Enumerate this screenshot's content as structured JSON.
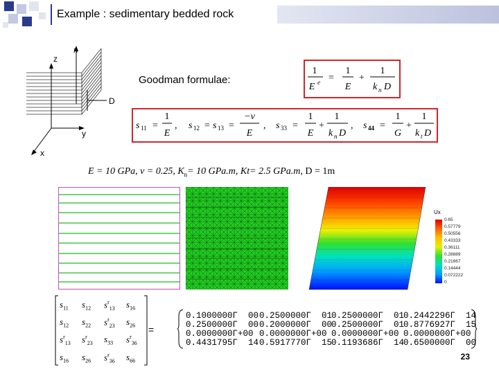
{
  "title": "Example : sedimentary bedded rock",
  "diagram": {
    "axis_n": "n",
    "axis_z": "z",
    "axis_d": "D",
    "axis_y": "y",
    "axis_x": "x"
  },
  "goodman": {
    "label": "Goodman formulae:",
    "lhs_num": "1",
    "lhs_den": "E",
    "lhs_den_sup": "e",
    "eq": "=",
    "t1_num": "1",
    "t1_den": "E",
    "plus": "+",
    "t2_num": "1",
    "t2_den_k": "k",
    "t2_den_sub": "n",
    "t2_den_d": "D"
  },
  "compliance": {
    "s11_label": "s",
    "s11_sub": "11",
    "s11_eq": "=",
    "s11_num": "1",
    "s11_den": "E",
    "comma": ",",
    "s12_label": "s",
    "s12_sub": "12",
    "s13_label": "s",
    "s13_sub": "13",
    "s12_num": "−ν",
    "s12_den": "E",
    "s33_label": "s",
    "s33_sub": "33",
    "s33_num1": "1",
    "s33_den1": "E",
    "s33_num2": "1",
    "s33_k": "k",
    "s33_ksub": "n",
    "s33_d": "D",
    "s44_label": "s",
    "s44_sub": "44",
    "s44_num1": "1",
    "s44_den1": "G",
    "s44_num2": "1",
    "s44_k": "k",
    "s44_ksub": "t",
    "s44_d": "D"
  },
  "params": {
    "text1": "E = 10 GPa, ν = 0.25,  K",
    "kn_sub": "n",
    "text2": "= 10 GPa.m, Kt= 2.5 GPa.m,  ",
    "d_text": "D = 1m"
  },
  "legend": {
    "title": "Ux",
    "values": [
      "0.65",
      "0.57779",
      "0.50556",
      "0.43333",
      "0.36111",
      "0.28889",
      "0.21667",
      "0.14444",
      "0.072222",
      "0"
    ]
  },
  "symbolic_matrix": {
    "equals": "=",
    "rows": [
      [
        [
          "s",
          "11",
          ""
        ],
        [
          "s",
          "12",
          ""
        ],
        [
          "s",
          "13",
          "r"
        ],
        [
          "s",
          "16",
          ""
        ]
      ],
      [
        [
          "s",
          "12",
          ""
        ],
        [
          "s",
          "22",
          ""
        ],
        [
          "s",
          "23",
          "r"
        ],
        [
          "s",
          "26",
          ""
        ]
      ],
      [
        [
          "s",
          "13",
          "r"
        ],
        [
          "s",
          "23",
          "r"
        ],
        [
          "s",
          "33",
          ""
        ],
        [
          "s",
          "36",
          "r"
        ]
      ],
      [
        [
          "s",
          "16",
          ""
        ],
        [
          "s",
          "26",
          ""
        ],
        [
          "s",
          "36",
          "r"
        ],
        [
          "s",
          "66",
          ""
        ]
      ]
    ]
  },
  "numeric_matrix": {
    "rows": [
      [
        "0.1000000Γ  00",
        "0.2500000Γ  01",
        "0.2500000Γ  01",
        "0.2442296Γ  14"
      ],
      [
        "0.2500000Γ  00",
        "0.2000000Γ  00",
        "0.2500000Γ  01",
        "0.8776927Γ  15"
      ],
      [
        "0.0000000Γ+00",
        "0.0000000Γ+00",
        "0.0000000Γ+00",
        "0.0000000Γ+00"
      ],
      [
        "0.4431795Γ  14",
        "0.5917770Γ  15",
        "0.1193686Γ  14",
        "0.6500000Γ  00"
      ]
    ]
  },
  "page_number": "23",
  "colors": {
    "accent_navy": "#2a3a8c",
    "box_red": "#d0262b",
    "mesh_green": "#22cc22",
    "layer_green": "#22bb22",
    "panel_border": "#c050c0"
  }
}
